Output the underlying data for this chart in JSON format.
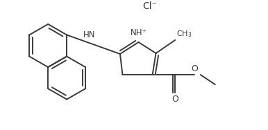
{
  "bg_color": "#ffffff",
  "bond_color": "#3a3a3a",
  "bond_lw": 1.4,
  "cl_label": "Cl⁻",
  "cl_color": "#3a3a3a",
  "cl_fontsize": 10,
  "nh_plus_label": "NH⁺",
  "hn_label": "HN",
  "o_label": "O",
  "label_color": "#3a3a3a",
  "label_fontsize": 8.5,
  "s_implied": true,
  "nap_ring_r": 0.62,
  "thz_scale": 1.0
}
